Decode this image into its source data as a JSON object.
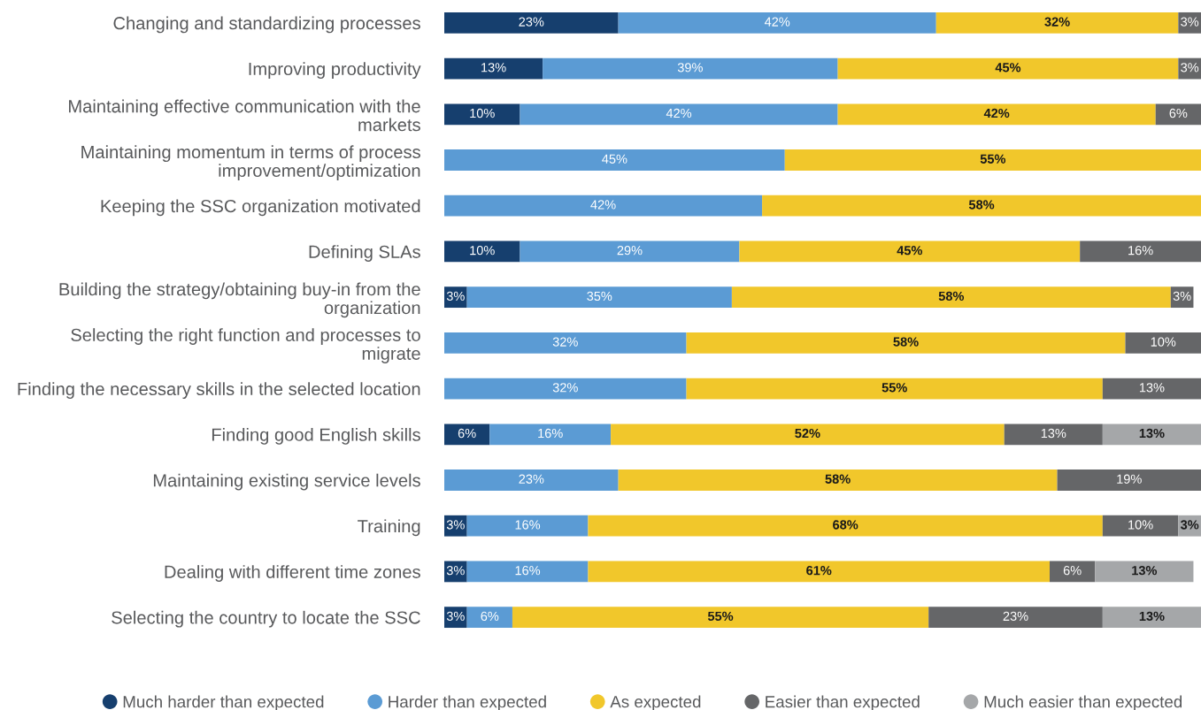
{
  "chart_data": {
    "type": "bar",
    "orientation": "horizontal",
    "stacked": true,
    "legend": "bottom",
    "categories": [
      "Changing and standardizing processes",
      "Improving productivity",
      "Maintaining effective communication with the\nmarkets",
      "Maintaining momentum in terms of process\nimprovement/optimization",
      "Keeping the SSC organization motivated",
      "Defining SLAs",
      "Building the strategy/obtaining buy-in from the\norganization",
      "Selecting the right function and processes to\nmigrate",
      "Finding the necessary skills in the selected location",
      "Finding good English skills",
      "Maintaining existing service levels",
      "Training",
      "Dealing with different time zones",
      "Selecting the country to locate the SSC"
    ],
    "series": [
      {
        "name": "Much harder than expected",
        "color": "#163f6e",
        "values": [
          23,
          13,
          10,
          null,
          null,
          10,
          3,
          null,
          null,
          6,
          null,
          3,
          3,
          3
        ],
        "value_labels": [
          "23%",
          "13%",
          "10%",
          null,
          null,
          "10%",
          "3%",
          null,
          null,
          "6%",
          null,
          "3%",
          "3%",
          "3%"
        ]
      },
      {
        "name": "Harder than expected",
        "color": "#5b9bd4",
        "values": [
          42,
          39,
          42,
          45,
          42,
          29,
          35,
          32,
          32,
          16,
          23,
          16,
          16,
          6
        ],
        "value_labels": [
          "42%",
          "39%",
          "42%",
          "45%",
          "42%",
          "29%",
          "35%",
          "32%",
          "32%",
          "16%",
          "23%",
          "16%",
          "16%",
          "6%"
        ]
      },
      {
        "name": "As expected",
        "color": "#f1c72b",
        "values": [
          32,
          45,
          42,
          55,
          58,
          45,
          58,
          58,
          55,
          52,
          58,
          68,
          61,
          55
        ],
        "value_labels": [
          "32%",
          "45%",
          "42%",
          "55%",
          "58%",
          "45%",
          "58%",
          "58%",
          "55%",
          "52%",
          "58%",
          "68%",
          "61%",
          "55%"
        ]
      },
      {
        "name": "Easier than expected",
        "color": "#656668",
        "values": [
          3,
          3,
          6,
          null,
          null,
          16,
          3,
          10,
          13,
          13,
          19,
          10,
          6,
          23
        ],
        "value_labels": [
          "3%",
          "3%",
          "6%",
          null,
          null,
          "16%",
          "3%",
          "10%",
          "13%",
          "13%",
          "19%",
          "10%",
          "6%",
          "23%"
        ]
      },
      {
        "name": "Much easier than expected",
        "color": "#a5a7a9",
        "values": [
          null,
          null,
          null,
          null,
          null,
          null,
          null,
          null,
          null,
          13,
          null,
          3,
          13,
          13
        ],
        "value_labels": [
          null,
          null,
          null,
          null,
          null,
          null,
          null,
          null,
          null,
          "13%",
          null,
          "3%",
          "13%",
          "13%"
        ]
      }
    ]
  }
}
